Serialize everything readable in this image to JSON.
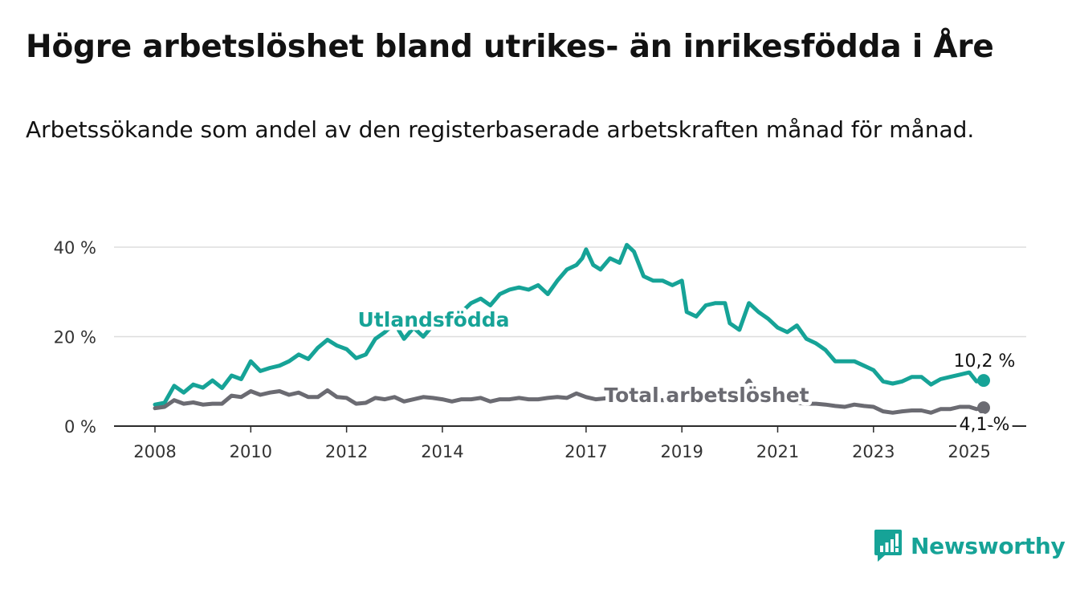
{
  "title": "Högre arbetslöshet bland utrikes- än inrikesfödda i Åre",
  "subtitle": "Arbetssökande som andel av den registerbaserade arbetskraften månad för månad.",
  "brand": {
    "name": "Newsworthy",
    "color": "#16a397",
    "icon": "bar-chart-speech-bubble-icon"
  },
  "chart_data": {
    "type": "line",
    "ylim": [
      0,
      40
    ],
    "yticks": [
      0,
      20,
      40
    ],
    "ytick_labels": [
      "0 %",
      "20 %",
      "40 %"
    ],
    "xticks": [
      2008,
      2010,
      2012,
      2014,
      2017,
      2019,
      2021,
      2023,
      2025
    ],
    "xtick_labels": [
      "2008",
      "2010",
      "2012",
      "2014",
      "2017",
      "2019",
      "2021",
      "2023",
      "2025"
    ],
    "grid": "horizontal",
    "series": [
      {
        "name": "Utlandsfödda",
        "color": "#16a397",
        "end_label": "10,2 %",
        "points": [
          [
            2008.0,
            4.8
          ],
          [
            2008.2,
            5.2
          ],
          [
            2008.4,
            9.0
          ],
          [
            2008.6,
            7.5
          ],
          [
            2008.8,
            9.3
          ],
          [
            2009.0,
            8.6
          ],
          [
            2009.2,
            10.2
          ],
          [
            2009.4,
            8.5
          ],
          [
            2009.6,
            11.3
          ],
          [
            2009.8,
            10.5
          ],
          [
            2010.0,
            14.5
          ],
          [
            2010.2,
            12.3
          ],
          [
            2010.4,
            13.0
          ],
          [
            2010.6,
            13.5
          ],
          [
            2010.8,
            14.5
          ],
          [
            2011.0,
            16.0
          ],
          [
            2011.2,
            15.0
          ],
          [
            2011.4,
            17.5
          ],
          [
            2011.6,
            19.3
          ],
          [
            2011.8,
            18.0
          ],
          [
            2012.0,
            17.2
          ],
          [
            2012.2,
            15.2
          ],
          [
            2012.4,
            16.0
          ],
          [
            2012.6,
            19.5
          ],
          [
            2012.8,
            21.0
          ],
          [
            2013.0,
            23.0
          ],
          [
            2013.2,
            19.5
          ],
          [
            2013.4,
            22.0
          ],
          [
            2013.6,
            20.0
          ],
          [
            2013.8,
            22.5
          ],
          [
            2014.0,
            23.5
          ],
          [
            2014.2,
            24.5
          ],
          [
            2014.4,
            25.5
          ],
          [
            2014.6,
            27.5
          ],
          [
            2014.8,
            28.5
          ],
          [
            2015.0,
            27.0
          ],
          [
            2015.2,
            29.5
          ],
          [
            2015.4,
            30.5
          ],
          [
            2015.6,
            31.0
          ],
          [
            2015.8,
            30.5
          ],
          [
            2016.0,
            31.5
          ],
          [
            2016.2,
            29.5
          ],
          [
            2016.4,
            32.5
          ],
          [
            2016.6,
            35.0
          ],
          [
            2016.8,
            36.0
          ],
          [
            2016.92,
            37.5
          ],
          [
            2017.0,
            39.5
          ],
          [
            2017.15,
            36.0
          ],
          [
            2017.3,
            35.0
          ],
          [
            2017.5,
            37.5
          ],
          [
            2017.7,
            36.5
          ],
          [
            2017.85,
            40.5
          ],
          [
            2018.0,
            39.0
          ],
          [
            2018.2,
            33.5
          ],
          [
            2018.4,
            32.5
          ],
          [
            2018.6,
            32.5
          ],
          [
            2018.8,
            31.5
          ],
          [
            2019.0,
            32.5
          ],
          [
            2019.1,
            25.5
          ],
          [
            2019.3,
            24.5
          ],
          [
            2019.5,
            27.0
          ],
          [
            2019.7,
            27.5
          ],
          [
            2019.9,
            27.5
          ],
          [
            2020.0,
            23.0
          ],
          [
            2020.2,
            21.5
          ],
          [
            2020.4,
            27.5
          ],
          [
            2020.6,
            25.5
          ],
          [
            2020.8,
            24.0
          ],
          [
            2021.0,
            22.0
          ],
          [
            2021.2,
            21.0
          ],
          [
            2021.4,
            22.5
          ],
          [
            2021.6,
            19.5
          ],
          [
            2021.8,
            18.5
          ],
          [
            2022.0,
            17.0
          ],
          [
            2022.2,
            14.5
          ],
          [
            2022.4,
            14.5
          ],
          [
            2022.6,
            14.5
          ],
          [
            2022.8,
            13.5
          ],
          [
            2023.0,
            12.5
          ],
          [
            2023.2,
            10.0
          ],
          [
            2023.4,
            9.5
          ],
          [
            2023.6,
            10.0
          ],
          [
            2023.8,
            11.0
          ],
          [
            2024.0,
            11.0
          ],
          [
            2024.2,
            9.3
          ],
          [
            2024.4,
            10.5
          ],
          [
            2024.6,
            11.0
          ],
          [
            2024.8,
            11.5
          ],
          [
            2025.0,
            12.0
          ],
          [
            2025.15,
            10.0
          ],
          [
            2025.3,
            10.2
          ]
        ]
      },
      {
        "name": "Total arbetslöshet",
        "color": "#6b6b72",
        "end_label": "4,1 %",
        "points": [
          [
            2008.0,
            4.0
          ],
          [
            2008.2,
            4.3
          ],
          [
            2008.4,
            5.8
          ],
          [
            2008.6,
            5.0
          ],
          [
            2008.8,
            5.3
          ],
          [
            2009.0,
            4.8
          ],
          [
            2009.2,
            5.0
          ],
          [
            2009.4,
            5.0
          ],
          [
            2009.6,
            6.8
          ],
          [
            2009.8,
            6.5
          ],
          [
            2010.0,
            7.8
          ],
          [
            2010.2,
            7.0
          ],
          [
            2010.4,
            7.5
          ],
          [
            2010.6,
            7.8
          ],
          [
            2010.8,
            7.0
          ],
          [
            2011.0,
            7.5
          ],
          [
            2011.2,
            6.5
          ],
          [
            2011.4,
            6.5
          ],
          [
            2011.6,
            8.0
          ],
          [
            2011.8,
            6.5
          ],
          [
            2012.0,
            6.3
          ],
          [
            2012.2,
            5.0
          ],
          [
            2012.4,
            5.2
          ],
          [
            2012.6,
            6.3
          ],
          [
            2012.8,
            6.0
          ],
          [
            2013.0,
            6.5
          ],
          [
            2013.2,
            5.5
          ],
          [
            2013.4,
            6.0
          ],
          [
            2013.6,
            6.5
          ],
          [
            2013.8,
            6.3
          ],
          [
            2014.0,
            6.0
          ],
          [
            2014.2,
            5.5
          ],
          [
            2014.4,
            6.0
          ],
          [
            2014.6,
            6.0
          ],
          [
            2014.8,
            6.3
          ],
          [
            2015.0,
            5.5
          ],
          [
            2015.2,
            6.0
          ],
          [
            2015.4,
            6.0
          ],
          [
            2015.6,
            6.3
          ],
          [
            2015.8,
            6.0
          ],
          [
            2016.0,
            6.0
          ],
          [
            2016.2,
            6.3
          ],
          [
            2016.4,
            6.5
          ],
          [
            2016.6,
            6.3
          ],
          [
            2016.8,
            7.3
          ],
          [
            2017.0,
            6.5
          ],
          [
            2017.2,
            6.0
          ],
          [
            2017.5,
            6.3
          ],
          [
            2017.8,
            6.0
          ],
          [
            2018.0,
            6.2
          ],
          [
            2018.3,
            6.0
          ],
          [
            2018.6,
            5.8
          ],
          [
            2018.9,
            6.0
          ],
          [
            2019.2,
            5.8
          ],
          [
            2019.5,
            5.8
          ],
          [
            2019.8,
            6.2
          ],
          [
            2020.0,
            6.5
          ],
          [
            2020.2,
            7.0
          ],
          [
            2020.4,
            10.2
          ],
          [
            2020.6,
            7.0
          ],
          [
            2020.8,
            6.5
          ],
          [
            2021.0,
            6.0
          ],
          [
            2021.2,
            5.5
          ],
          [
            2021.4,
            5.2
          ],
          [
            2021.6,
            5.0
          ],
          [
            2021.8,
            5.0
          ],
          [
            2022.0,
            4.8
          ],
          [
            2022.2,
            4.5
          ],
          [
            2022.4,
            4.3
          ],
          [
            2022.6,
            4.8
          ],
          [
            2022.8,
            4.5
          ],
          [
            2023.0,
            4.3
          ],
          [
            2023.2,
            3.3
          ],
          [
            2023.4,
            3.0
          ],
          [
            2023.6,
            3.3
          ],
          [
            2023.8,
            3.5
          ],
          [
            2024.0,
            3.5
          ],
          [
            2024.2,
            3.0
          ],
          [
            2024.4,
            3.8
          ],
          [
            2024.6,
            3.8
          ],
          [
            2024.8,
            4.3
          ],
          [
            2025.0,
            4.3
          ],
          [
            2025.15,
            3.8
          ],
          [
            2025.3,
            4.1
          ]
        ]
      }
    ]
  }
}
